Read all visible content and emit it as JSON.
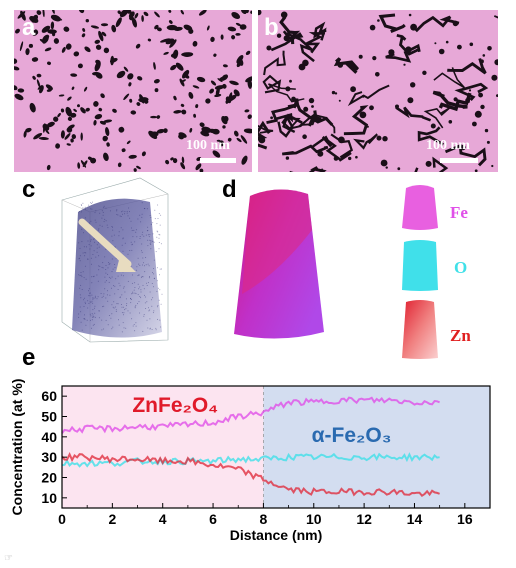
{
  "panels": {
    "a": {
      "label": "a",
      "scale": "100 nm"
    },
    "b": {
      "label": "b",
      "scale": "100 nm"
    },
    "c": {
      "label": "c"
    },
    "d": {
      "label": "d",
      "elements": [
        "Fe",
        "O",
        "Zn"
      ]
    },
    "e": {
      "label": "e"
    }
  },
  "colors": {
    "Fe": "#e050e8",
    "O": "#40e0e8",
    "Zn": "#e03040",
    "region1": "#fce4f0",
    "region2": "#d3ddf0"
  },
  "chart_data": {
    "type": "line",
    "xlabel": "Distance (nm)",
    "ylabel": "Concentration (at %)",
    "xlim": [
      0,
      17
    ],
    "ylim": [
      5,
      65
    ],
    "xticks": [
      0,
      2,
      4,
      6,
      8,
      10,
      12,
      14,
      16
    ],
    "yticks": [
      10,
      20,
      30,
      40,
      50,
      60
    ],
    "regions": [
      {
        "label": "ZnFe₂O₄",
        "x": [
          0,
          8
        ]
      },
      {
        "label": "α-Fe₂O₃",
        "x": [
          8,
          17
        ]
      }
    ],
    "series": [
      {
        "name": "Fe",
        "x": [
          0,
          1,
          2,
          3,
          4,
          5,
          6,
          7,
          8,
          9,
          10,
          11,
          12,
          13,
          14,
          15
        ],
        "values": [
          43,
          44,
          44,
          45,
          45,
          46,
          47,
          50,
          52,
          57,
          57,
          58,
          58,
          58,
          57,
          57
        ]
      },
      {
        "name": "O",
        "x": [
          0,
          1,
          2,
          3,
          4,
          5,
          6,
          7,
          8,
          9,
          10,
          11,
          12,
          13,
          14,
          15
        ],
        "values": [
          27,
          27,
          27,
          28,
          28,
          28,
          28,
          29,
          29,
          30,
          30,
          30,
          30,
          30,
          30,
          30
        ]
      },
      {
        "name": "Zn",
        "x": [
          0,
          1,
          2,
          3,
          4,
          5,
          6,
          7,
          8,
          9,
          10,
          11,
          12,
          13,
          14,
          15
        ],
        "values": [
          30,
          30,
          29,
          29,
          28,
          28,
          26,
          24,
          19,
          14,
          13,
          13,
          13,
          13,
          12,
          12
        ]
      }
    ]
  }
}
